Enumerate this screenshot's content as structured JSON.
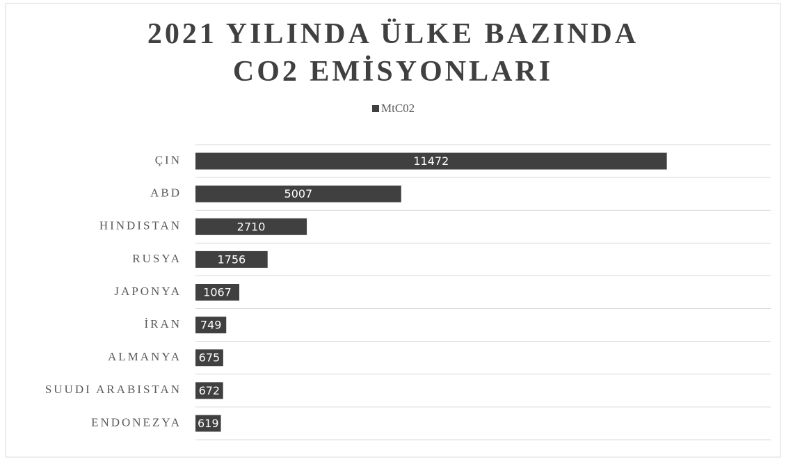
{
  "chart_data": {
    "type": "hbar",
    "title": "2021 YILINDA ÜLKE BAZINDA CO2 EMİSYONLARI",
    "categories": [
      "ÇIN",
      "ABD",
      "HINDISTAN",
      "RUSYA",
      "JAPONYA",
      "İRAN",
      "ALMANYA",
      "SUUDI ARABISTAN",
      "ENDONEZYA"
    ],
    "series": [
      {
        "name": "MtC02",
        "color": "#404040",
        "values": [
          11472,
          5007,
          2710,
          1756,
          1067,
          749,
          675,
          672,
          619
        ]
      }
    ],
    "xlim": [
      0,
      14000
    ],
    "legend": "top"
  }
}
